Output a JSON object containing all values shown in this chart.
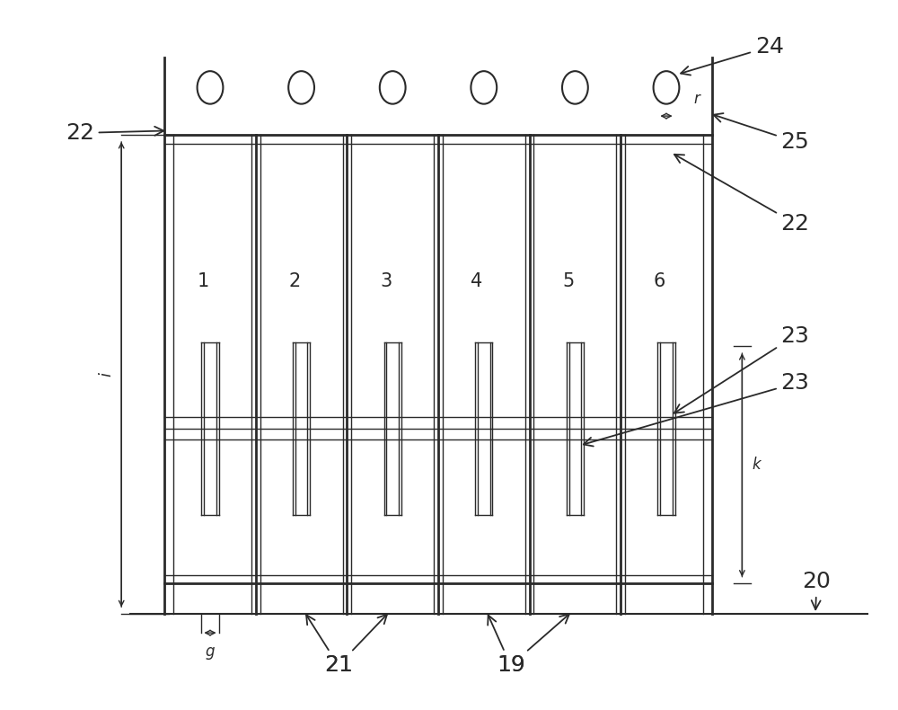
{
  "bg_color": "#ffffff",
  "line_color": "#2a2a2a",
  "fig_width": 10.0,
  "fig_height": 7.9,
  "num_slots": 6,
  "slot_labels": [
    "1",
    "2",
    "3",
    "4",
    "5",
    "6"
  ],
  "annotations": {
    "22_top": "22",
    "22_mid": "22",
    "24": "24",
    "25": "25",
    "23": "23",
    "20": "20",
    "19": "19",
    "21": "21",
    "i_label": "i",
    "k_label": "k",
    "r_label": "r",
    "g_label": "g"
  }
}
